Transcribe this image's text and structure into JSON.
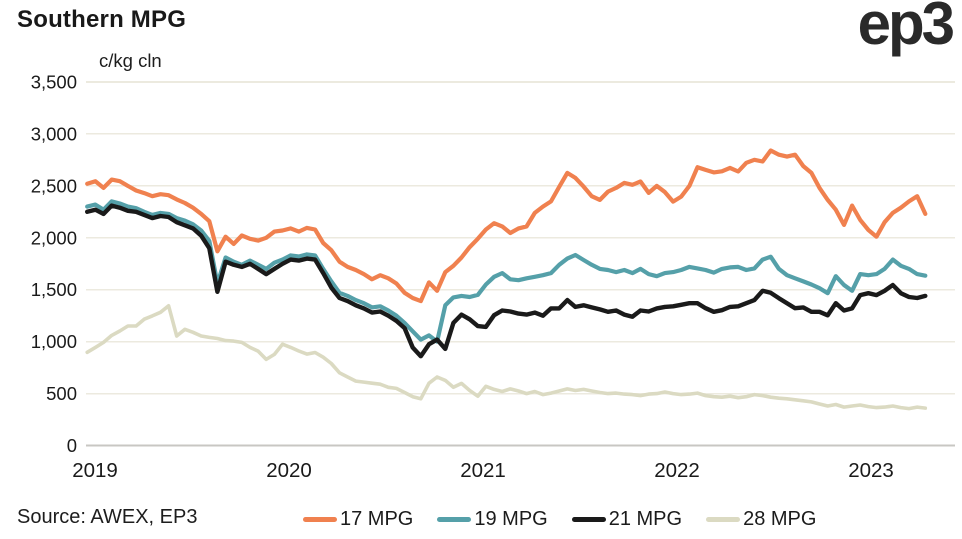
{
  "header": {
    "title": "Southern MPG",
    "logo_text": "ep3"
  },
  "footer": {
    "source": "Source: AWEX, EP3"
  },
  "chart_data": {
    "type": "line",
    "title": "Southern MPG",
    "unit_label": "c/kg cln",
    "grid": true,
    "legend_position": "bottom",
    "x_axis": {
      "range": [
        2018.96,
        2023.28
      ],
      "ticks": [
        {
          "value": 2019,
          "label": "2019"
        },
        {
          "value": 2020,
          "label": "2020"
        },
        {
          "value": 2021,
          "label": "2021"
        },
        {
          "value": 2022,
          "label": "2022"
        },
        {
          "value": 2023,
          "label": "2023"
        }
      ]
    },
    "y_axis": {
      "range": [
        0,
        3500
      ],
      "ticks": [
        {
          "value": 0,
          "label": "0"
        },
        {
          "value": 500,
          "label": "500"
        },
        {
          "value": 1000,
          "label": "1,000"
        },
        {
          "value": 1500,
          "label": "1,500"
        },
        {
          "value": 2000,
          "label": "2,000"
        },
        {
          "value": 2500,
          "label": "2,500"
        },
        {
          "value": 3000,
          "label": "3,000"
        },
        {
          "value": 3500,
          "label": "3,500"
        }
      ]
    },
    "colors": {
      "grid": "#ECEADF",
      "zero_axis": "#C8C7C3",
      "text": "#1A1A1A"
    },
    "series": [
      {
        "name": "17 MPG",
        "color": "#F0814F",
        "values": [
          2520,
          2545,
          2480,
          2560,
          2545,
          2500,
          2455,
          2430,
          2400,
          2420,
          2410,
          2370,
          2335,
          2290,
          2230,
          2160,
          1870,
          2010,
          1941,
          2022,
          1990,
          1973,
          2000,
          2060,
          2070,
          2090,
          2060,
          2095,
          2080,
          1950,
          1880,
          1770,
          1720,
          1690,
          1650,
          1600,
          1640,
          1610,
          1560,
          1470,
          1420,
          1390,
          1570,
          1490,
          1670,
          1730,
          1810,
          1910,
          1990,
          2080,
          2140,
          2110,
          2046,
          2090,
          2110,
          2240,
          2300,
          2350,
          2490,
          2625,
          2577,
          2493,
          2400,
          2365,
          2445,
          2480,
          2528,
          2510,
          2542,
          2432,
          2500,
          2440,
          2348,
          2397,
          2500,
          2680,
          2654,
          2630,
          2640,
          2673,
          2638,
          2722,
          2751,
          2735,
          2840,
          2800,
          2782,
          2800,
          2690,
          2625,
          2480,
          2365,
          2270,
          2124,
          2310,
          2172,
          2075,
          2010,
          2150,
          2240,
          2290,
          2350,
          2400,
          2230
        ]
      },
      {
        "name": "19 MPG",
        "color": "#55A0A9",
        "values": [
          2300,
          2320,
          2270,
          2350,
          2330,
          2300,
          2285,
          2250,
          2220,
          2240,
          2230,
          2190,
          2165,
          2130,
          2070,
          1970,
          1560,
          1810,
          1770,
          1740,
          1780,
          1740,
          1700,
          1760,
          1790,
          1830,
          1820,
          1840,
          1830,
          1700,
          1580,
          1470,
          1440,
          1400,
          1370,
          1330,
          1340,
          1300,
          1250,
          1180,
          1100,
          1020,
          1060,
          1000,
          1350,
          1426,
          1440,
          1430,
          1450,
          1550,
          1624,
          1660,
          1600,
          1592,
          1610,
          1624,
          1640,
          1660,
          1740,
          1800,
          1834,
          1786,
          1740,
          1700,
          1690,
          1670,
          1690,
          1660,
          1700,
          1650,
          1630,
          1660,
          1670,
          1690,
          1720,
          1705,
          1690,
          1665,
          1700,
          1715,
          1720,
          1690,
          1705,
          1790,
          1818,
          1700,
          1640,
          1610,
          1580,
          1550,
          1515,
          1466,
          1630,
          1545,
          1490,
          1650,
          1640,
          1650,
          1700,
          1790,
          1730,
          1700,
          1650,
          1635
        ]
      },
      {
        "name": "21 MPG",
        "color": "#1A1A1A",
        "values": [
          2250,
          2270,
          2230,
          2310,
          2290,
          2260,
          2250,
          2220,
          2190,
          2210,
          2200,
          2150,
          2120,
          2090,
          2020,
          1900,
          1480,
          1770,
          1740,
          1720,
          1750,
          1700,
          1650,
          1700,
          1750,
          1790,
          1780,
          1800,
          1790,
          1660,
          1520,
          1420,
          1390,
          1350,
          1320,
          1280,
          1290,
          1250,
          1200,
          1130,
          944,
          860,
          975,
          1020,
          930,
          1180,
          1260,
          1215,
          1150,
          1142,
          1255,
          1300,
          1290,
          1270,
          1260,
          1280,
          1250,
          1320,
          1320,
          1400,
          1335,
          1350,
          1330,
          1310,
          1287,
          1300,
          1260,
          1240,
          1300,
          1290,
          1320,
          1335,
          1340,
          1355,
          1370,
          1370,
          1322,
          1287,
          1303,
          1335,
          1340,
          1370,
          1400,
          1490,
          1470,
          1418,
          1370,
          1322,
          1330,
          1287,
          1287,
          1254,
          1370,
          1300,
          1320,
          1448,
          1466,
          1448,
          1490,
          1545,
          1466,
          1430,
          1420,
          1440
        ]
      },
      {
        "name": "28 MPG",
        "color": "#DBDAC2",
        "values": [
          897,
          945,
          993,
          1060,
          1102,
          1151,
          1151,
          1216,
          1248,
          1283,
          1345,
          1054,
          1119,
          1090,
          1054,
          1041,
          1030,
          1010,
          1005,
          993,
          945,
          909,
          829,
          877,
          975,
          945,
          910,
          880,
          895,
          850,
          790,
          700,
          660,
          620,
          610,
          600,
          590,
          560,
          550,
          510,
          470,
          450,
          600,
          660,
          627,
          560,
          598,
          530,
          475,
          570,
          540,
          520,
          545,
          525,
          500,
          520,
          490,
          505,
          525,
          545,
          530,
          540,
          525,
          510,
          500,
          505,
          495,
          490,
          480,
          495,
          500,
          515,
          500,
          490,
          495,
          505,
          480,
          470,
          465,
          475,
          460,
          470,
          490,
          480,
          465,
          455,
          450,
          440,
          430,
          420,
          400,
          380,
          395,
          370,
          380,
          390,
          375,
          365,
          370,
          380,
          365,
          355,
          370,
          360
        ]
      }
    ]
  }
}
